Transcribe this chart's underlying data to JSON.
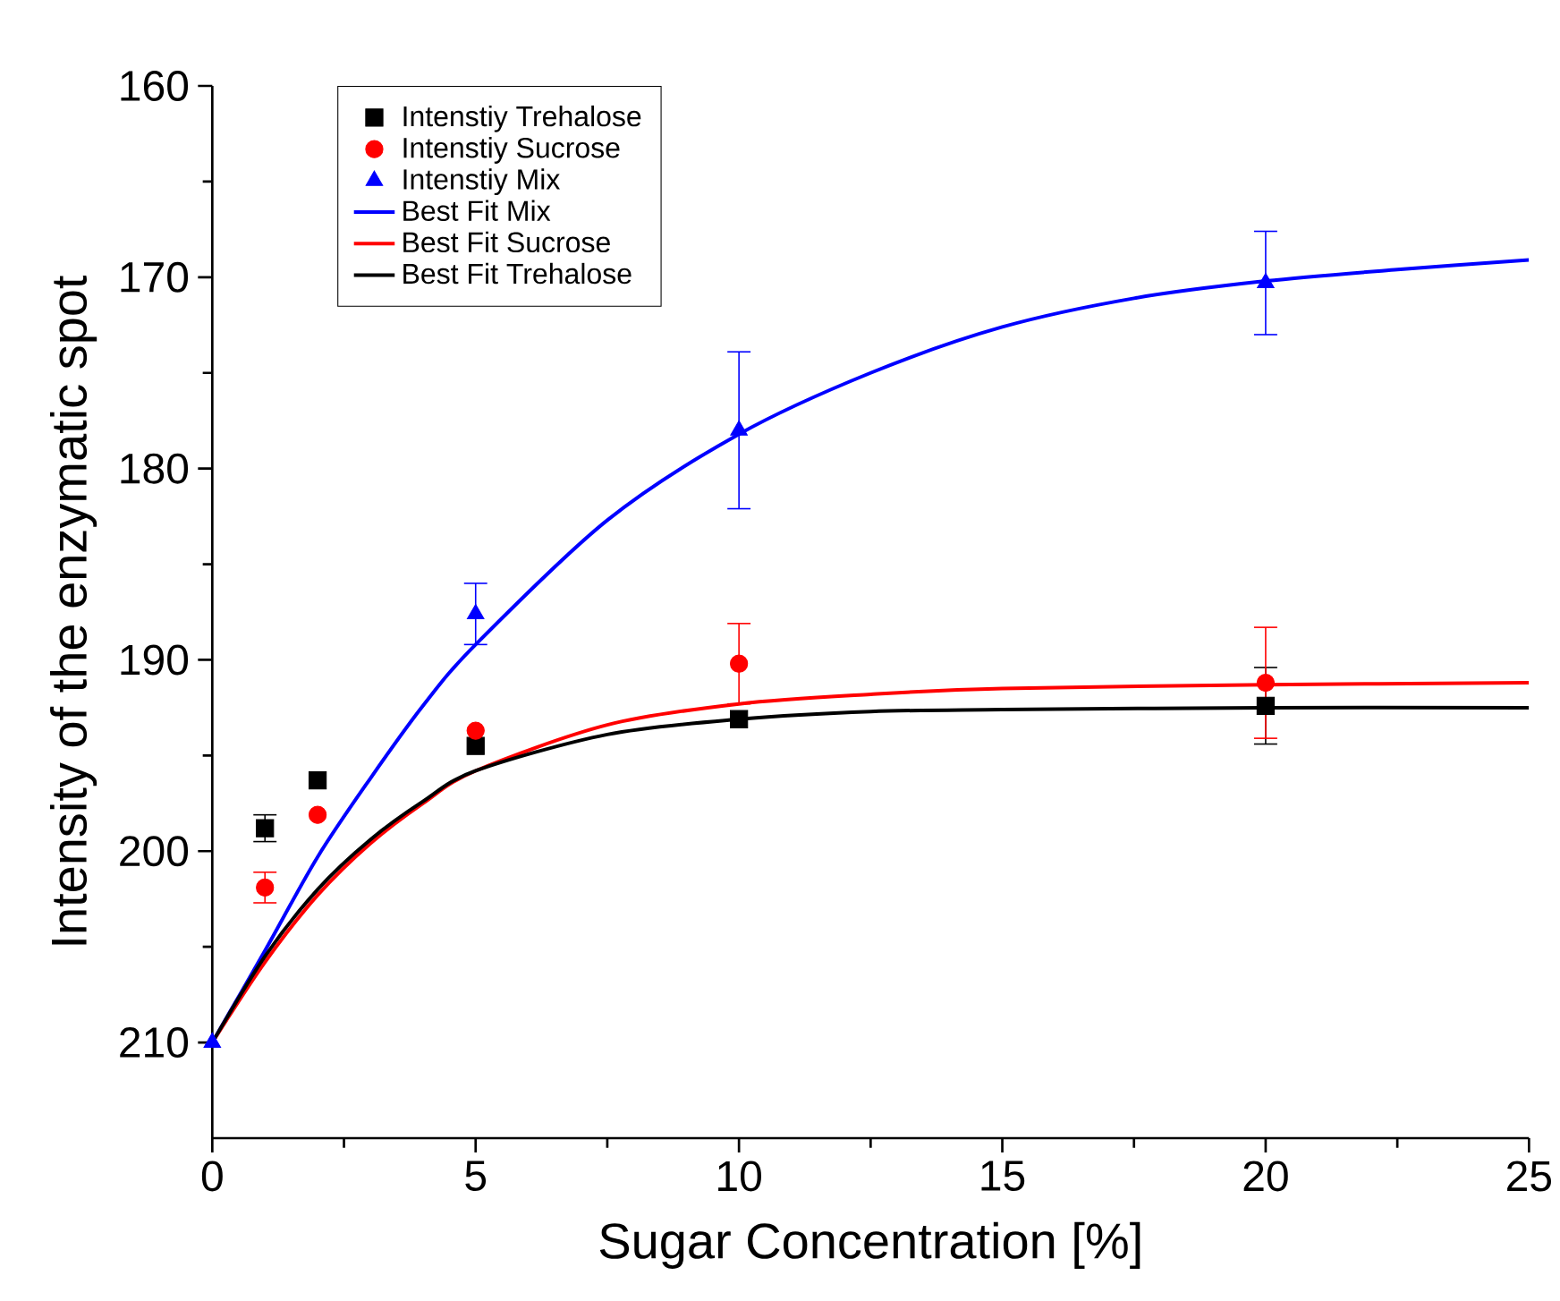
{
  "chart_data": {
    "type": "scatter",
    "xlabel": "Sugar Concentration [%]",
    "ylabel": "Intensity of the enzymatic spot",
    "xlim": [
      0,
      25
    ],
    "ylim": [
      215,
      160
    ],
    "xticks": [
      0,
      5,
      10,
      15,
      20,
      25
    ],
    "yticks": [
      160,
      170,
      180,
      190,
      200,
      210
    ],
    "legend": "top left",
    "grid": false,
    "series": [
      {
        "name": "Intenstiy Trehalose",
        "marker": "square",
        "color": "#000000",
        "x": [
          1,
          2,
          5,
          10,
          20
        ],
        "values": [
          198.8,
          196.3,
          194.5,
          193.1,
          192.4
        ],
        "errors": [
          0.7,
          null,
          null,
          null,
          2.0
        ]
      },
      {
        "name": "Intenstiy Sucrose",
        "marker": "circle",
        "color": "#ff0000",
        "x": [
          1,
          2,
          5,
          10,
          20
        ],
        "values": [
          201.9,
          198.1,
          193.7,
          190.2,
          191.2
        ],
        "errors": [
          0.8,
          null,
          null,
          2.1,
          2.9
        ]
      },
      {
        "name": "Intenstiy Mix",
        "marker": "triangle",
        "color": "#0000ff",
        "x": [
          0,
          5,
          10,
          20
        ],
        "values": [
          210,
          187.6,
          178.0,
          170.3
        ],
        "errors": [
          null,
          1.6,
          4.1,
          2.7
        ]
      },
      {
        "name": "Best Fit Mix",
        "type": "line",
        "marker": "none",
        "color": "#0000ff",
        "x": [
          0,
          1,
          2,
          3,
          4,
          5,
          7.5,
          10,
          12.5,
          15,
          17.5,
          20,
          22.5,
          25
        ],
        "values": [
          210,
          205.2,
          200.3,
          196.2,
          192.4,
          189.2,
          182.7,
          178.2,
          175.0,
          172.6,
          171.1,
          170.2,
          169.6,
          169.1
        ]
      },
      {
        "name": "Best Fit Sucrose",
        "type": "line",
        "marker": "none",
        "color": "#ff0000",
        "x": [
          0,
          1,
          2,
          3,
          4,
          5,
          7.5,
          10,
          12.5,
          15,
          20,
          25
        ],
        "values": [
          210,
          205.8,
          202.3,
          199.6,
          197.5,
          195.8,
          193.4,
          192.3,
          191.8,
          191.5,
          191.3,
          191.2
        ]
      },
      {
        "name": "Best Fit Trehalose",
        "type": "line",
        "marker": "none",
        "color": "#000000",
        "x": [
          0,
          1,
          2,
          3,
          4,
          5,
          7.5,
          10,
          12.5,
          15,
          20,
          25
        ],
        "values": [
          210,
          205.5,
          202.0,
          199.4,
          197.4,
          195.8,
          193.9,
          193.1,
          192.7,
          192.6,
          192.5,
          192.5
        ]
      }
    ]
  }
}
